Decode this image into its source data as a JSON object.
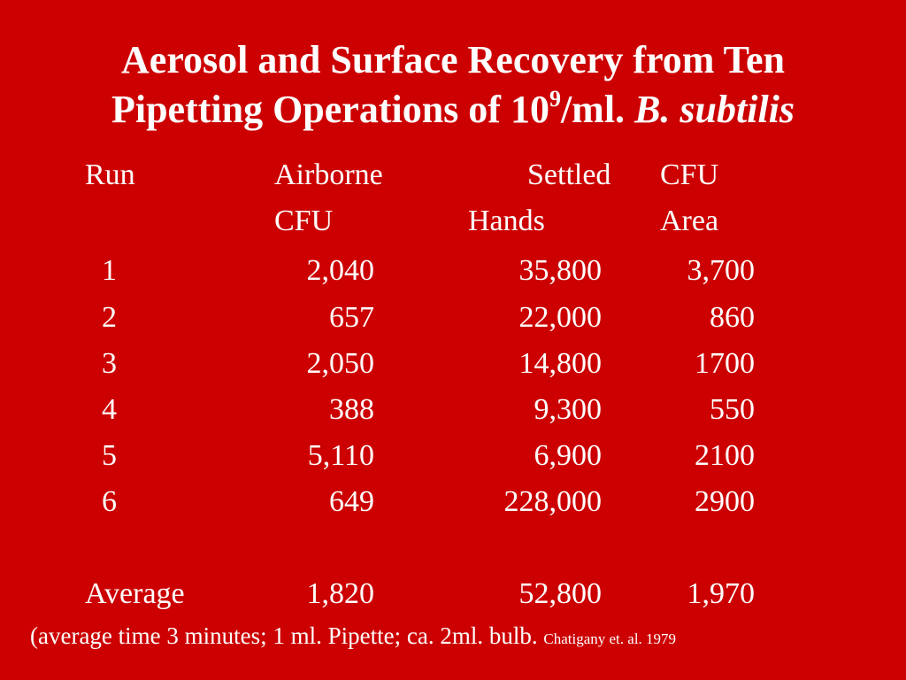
{
  "title": {
    "line1": "Aerosol and Surface Recovery from Ten",
    "line2_prefix": "Pipetting Operations of 10",
    "line2_sup": "9",
    "line2_mid": "/ml. ",
    "line2_italic": "B. subtilis"
  },
  "headers": {
    "run": "Run",
    "airborne_line1": "Airborne",
    "airborne_line2": "CFU",
    "settled": "Settled",
    "hands": "Hands",
    "cfu": "CFU",
    "area": "Area"
  },
  "rows": [
    {
      "run": "1",
      "airborne": "2,040",
      "hands": "35,800",
      "area": "3,700"
    },
    {
      "run": "2",
      "airborne": "657",
      "hands": "22,000",
      "area": "860"
    },
    {
      "run": "3",
      "airborne": "2,050",
      "hands": "14,800",
      "area": "1700"
    },
    {
      "run": "4",
      "airborne": "388",
      "hands": "9,300",
      "area": "550"
    },
    {
      "run": "5",
      "airborne": "5,110",
      "hands": "6,900",
      "area": "2100"
    },
    {
      "run": "6",
      "airborne": "649",
      "hands": "228,000",
      "area": "2900"
    }
  ],
  "average": {
    "label": "Average",
    "airborne": "1,820",
    "hands": "52,800",
    "area": "1,970"
  },
  "footnote": {
    "text": "(average time 3 minutes; 1 ml. Pipette; ca. 2ml. bulb. ",
    "citation": "Chatigany et. al. 1979"
  },
  "colors": {
    "background": "#cc0000",
    "text": "#ffffff"
  }
}
